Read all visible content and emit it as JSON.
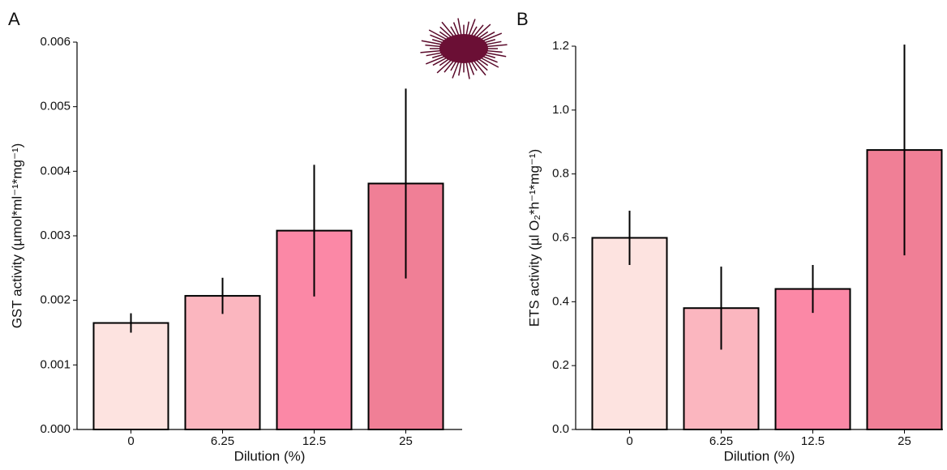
{
  "chart_data": [
    {
      "type": "bar",
      "label": "A",
      "xlabel": "Dilution (%)",
      "ylabel": "GST activity (µmol*ml⁻¹*mg⁻¹)",
      "categories": [
        "0",
        "6.25",
        "12.5",
        "25"
      ],
      "values": [
        0.00165,
        0.00207,
        0.00308,
        0.00381
      ],
      "errors": [
        0.00015,
        0.00028,
        0.00102,
        0.00147
      ],
      "colors": [
        "#fde3e0",
        "#fbb6bf",
        "#fb88a6",
        "#f07f96"
      ],
      "ylim": [
        0,
        0.006
      ],
      "yticks": [
        {
          "value": 0,
          "label": "0.000"
        },
        0.001,
        0.002,
        0.003,
        0.004,
        0.005,
        0.006
      ]
    },
    {
      "type": "bar",
      "label": "B",
      "xlabel": "Dilution (%)",
      "ylabel": "ETS activity (µl O₂*h⁻¹*mg⁻¹)",
      "categories": [
        "0",
        "6.25",
        "12.5",
        "25"
      ],
      "values": [
        0.6,
        0.38,
        0.44,
        0.875
      ],
      "errors": [
        0.085,
        0.13,
        0.075,
        0.33
      ],
      "colors": [
        "#fde3e0",
        "#fbb6bf",
        "#fb88a6",
        "#f07f96"
      ],
      "ylim": [
        0,
        1.2
      ],
      "yticks": [
        {
          "value": 0,
          "label": "0.0"
        },
        0.2,
        0.4,
        0.6,
        0.8,
        {
          "value": 1,
          "label": "1.0"
        },
        1.2
      ]
    }
  ]
}
